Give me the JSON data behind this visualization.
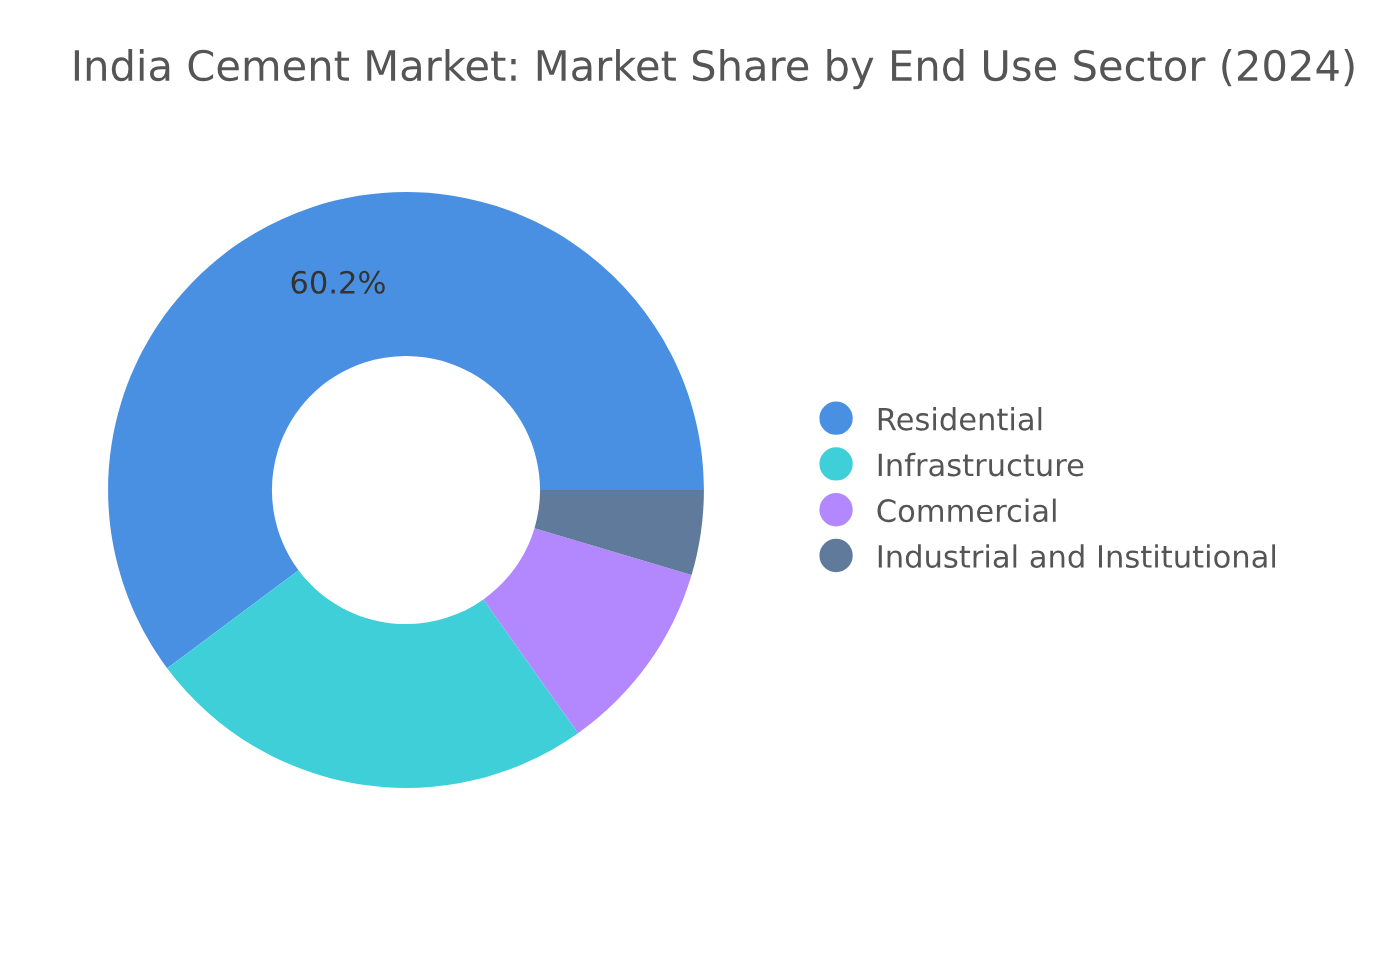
{
  "chart_data": {
    "type": "donut",
    "title": "India Cement Market: Market Share by End Use Sector (2024)",
    "categories": [
      "Residential",
      "Infrastructure",
      "Commercial",
      "Industrial and Institutional"
    ],
    "values": [
      60.2,
      24.6,
      10.6,
      4.6
    ],
    "colors": [
      "#4a90e2",
      "#3ecfd8",
      "#b388ff",
      "#5f7a9a"
    ],
    "value_labels": [
      "60.2%",
      null,
      null,
      null
    ],
    "legend": "right"
  }
}
